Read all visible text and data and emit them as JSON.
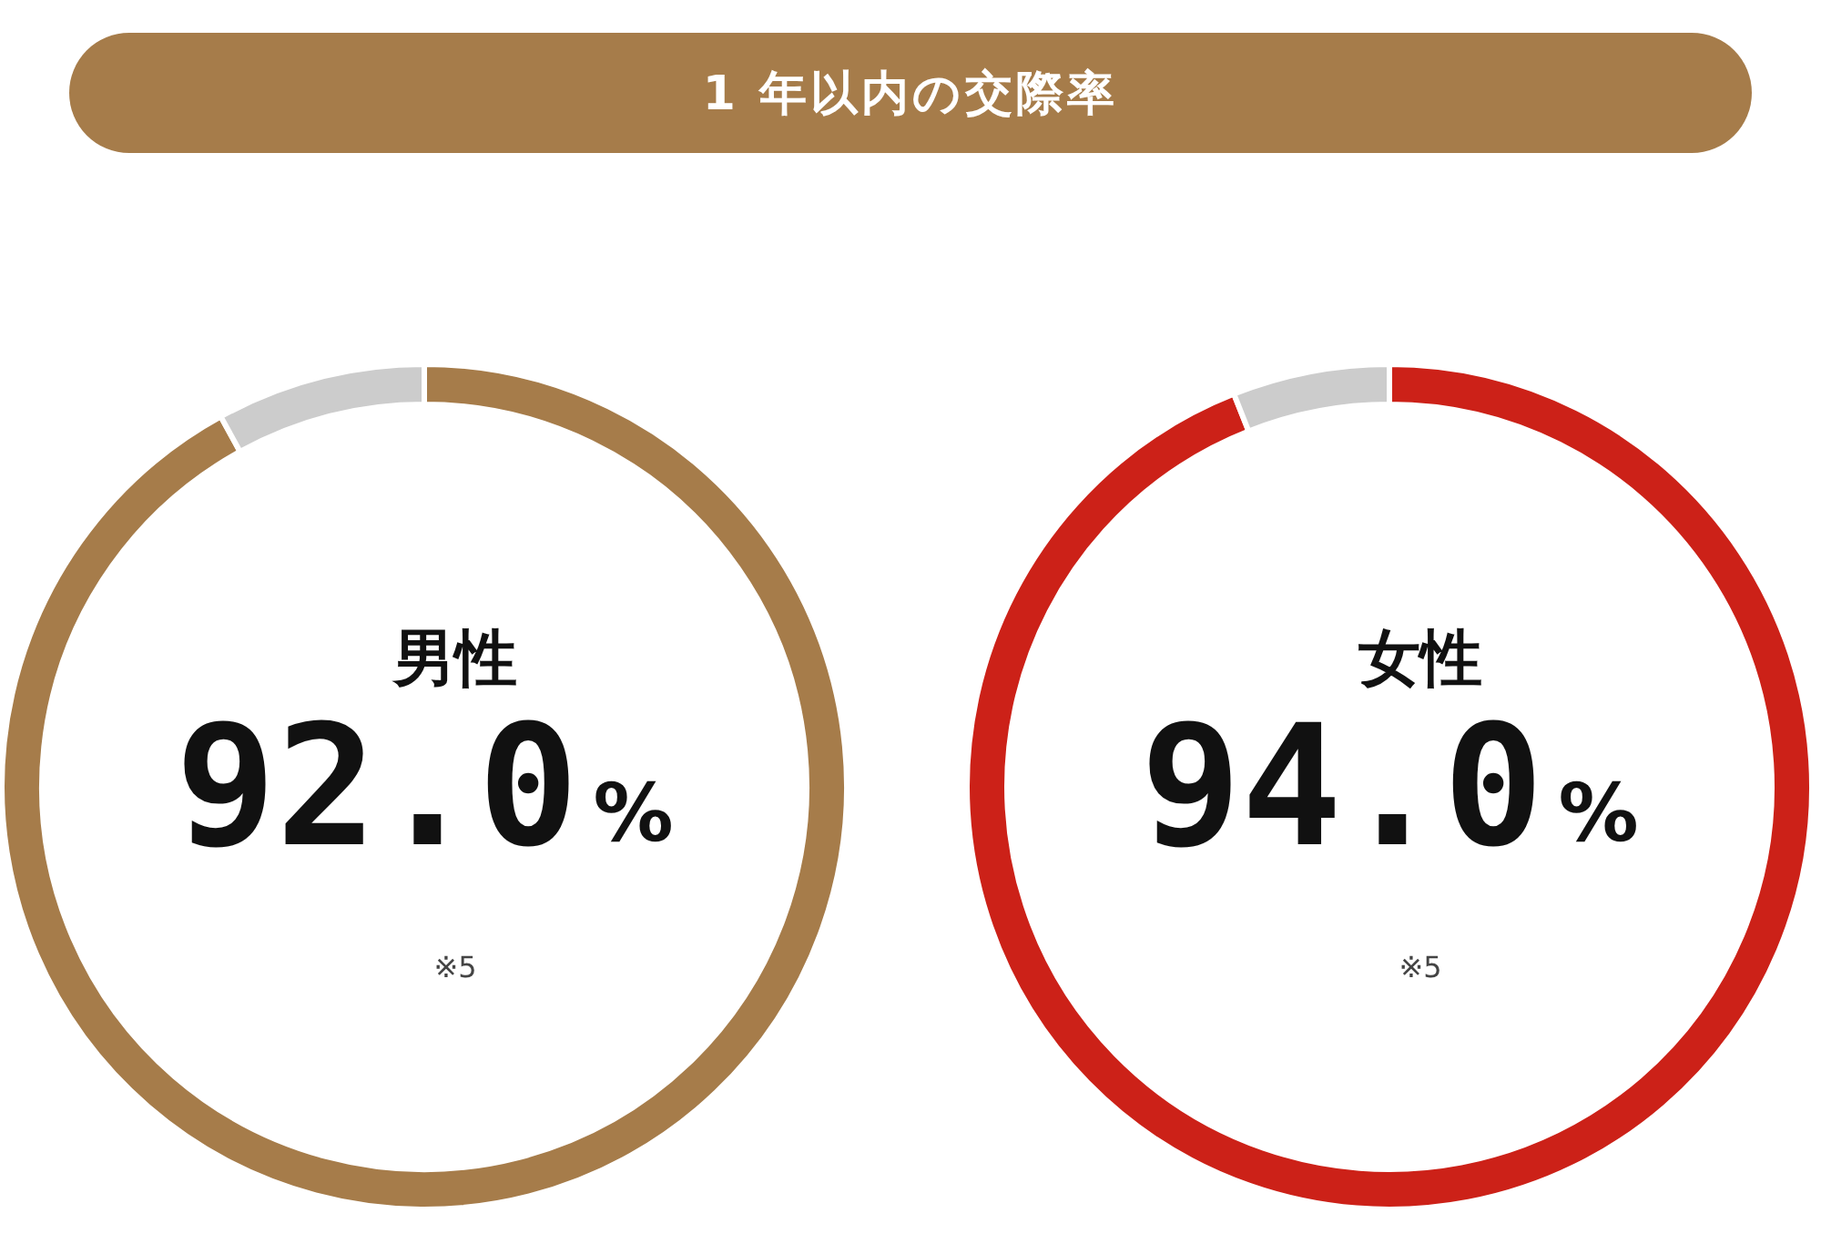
{
  "chart_data": [
    {
      "type": "donut",
      "title": "1 年以内の交際率",
      "subtitle": "男性",
      "categories": [
        null,
        null
      ],
      "values": [
        92.0,
        8.0
      ],
      "colors": [
        "#a67c4a",
        "#cccccc"
      ],
      "value_labels": [
        "92.0%",
        null
      ],
      "annotations": [
        "※5"
      ]
    },
    {
      "type": "donut",
      "subtitle": "女性",
      "categories": [
        null,
        null
      ],
      "values": [
        94.0,
        6.0
      ],
      "colors": [
        "#cc2118",
        "#cccccc"
      ],
      "value_labels": [
        "94.0%",
        null
      ],
      "annotations": [
        "※5"
      ]
    }
  ]
}
